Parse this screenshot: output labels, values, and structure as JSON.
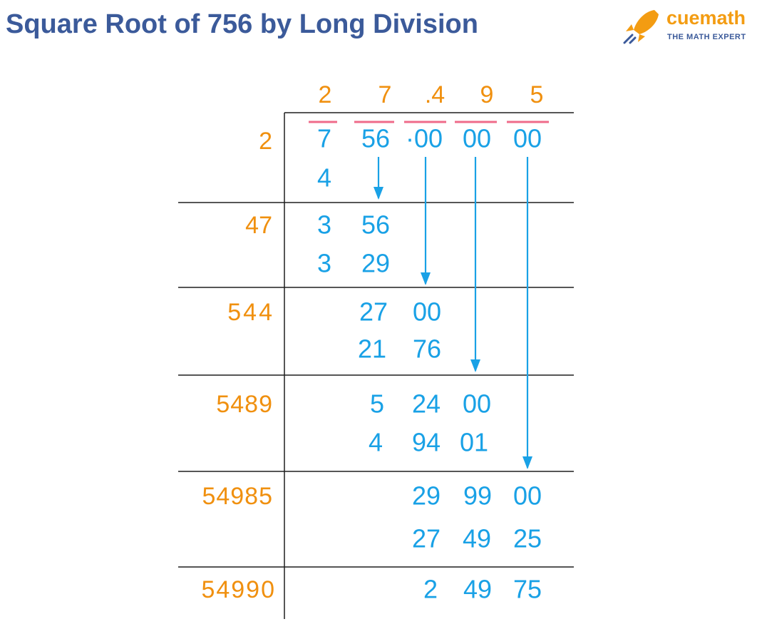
{
  "header": {
    "title": "Square Root of 756 by Long Division",
    "logo": "cuemath",
    "tagline": "THE MATH EXPERT"
  },
  "division": {
    "quotient": [
      "2",
      "7",
      ".4",
      "9",
      "5"
    ],
    "divisors": [
      "2",
      "47",
      "544",
      "5489",
      "54985",
      "54990"
    ],
    "dividend": [
      "7",
      "56",
      "·00",
      "00",
      "00"
    ],
    "steps": [
      [
        "4"
      ],
      [
        "3",
        "56"
      ],
      [
        "3",
        "29"
      ],
      [
        "27",
        "00"
      ],
      [
        "21",
        "76"
      ],
      [
        "5",
        "24",
        "00"
      ],
      [
        "4",
        "94",
        "01"
      ],
      [
        "29",
        "99",
        "00"
      ],
      [
        "27",
        "49",
        "25"
      ],
      [
        "2",
        "49",
        "75"
      ]
    ]
  }
}
